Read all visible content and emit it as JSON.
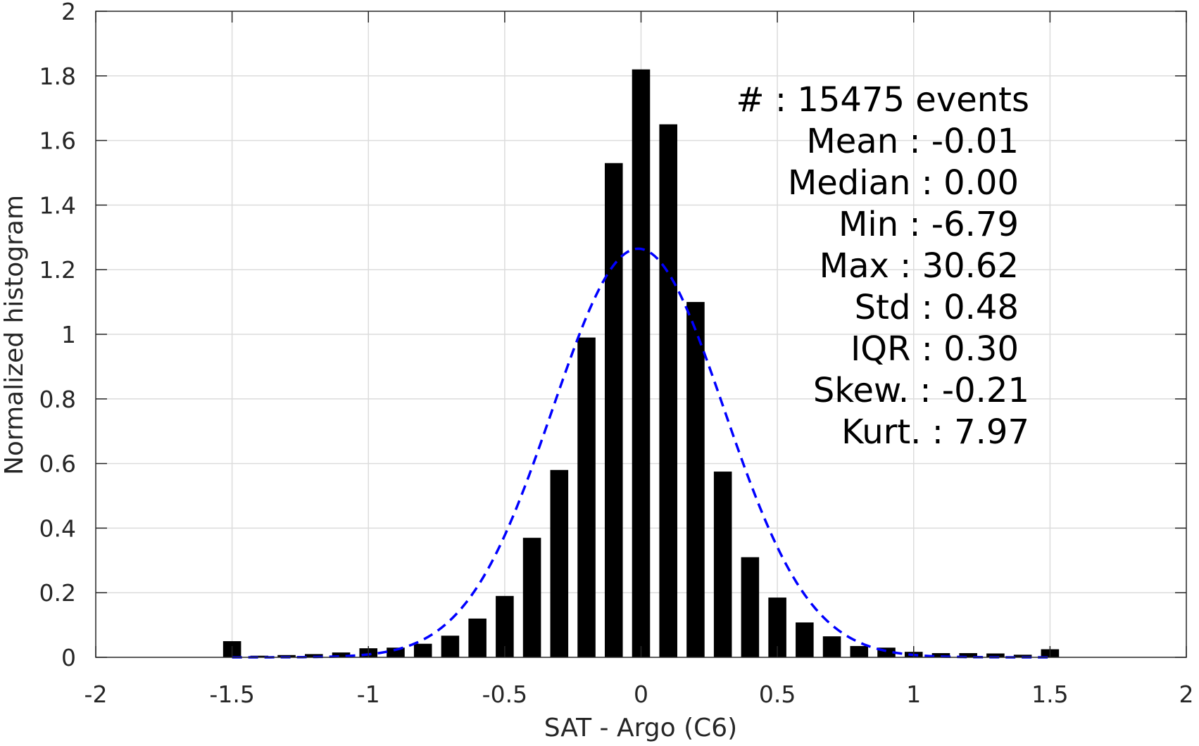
{
  "chart_data": {
    "type": "bar",
    "xlabel": "SAT - Argo (C6)",
    "ylabel": "Normalized histogram",
    "xlim": [
      -2,
      2
    ],
    "ylim": [
      0,
      2
    ],
    "grid": true,
    "x_ticks": [
      -2,
      -1.5,
      -1,
      -0.5,
      0,
      0.5,
      1,
      1.5,
      2
    ],
    "x_tick_labels": [
      "-2",
      "-1.5",
      "-1",
      "-0.5",
      "0",
      "0.5",
      "1",
      "1.5",
      "2"
    ],
    "y_ticks": [
      0,
      0.2,
      0.4,
      0.6,
      0.8,
      1,
      1.2,
      1.4,
      1.6,
      1.8,
      2
    ],
    "y_tick_labels": [
      "0",
      "0.2",
      "0.4",
      "0.6",
      "0.8",
      "1",
      "1.2",
      "1.4",
      "1.6",
      "1.8",
      "2"
    ],
    "bin_width": 0.1,
    "x": [
      -1.5,
      -1.4,
      -1.3,
      -1.2,
      -1.1,
      -1.0,
      -0.9,
      -0.8,
      -0.7,
      -0.6,
      -0.5,
      -0.4,
      -0.3,
      -0.2,
      -0.1,
      0.0,
      0.1,
      0.2,
      0.3,
      0.4,
      0.5,
      0.6,
      0.7,
      0.8,
      0.9,
      1.0,
      1.1,
      1.2,
      1.3,
      1.4,
      1.5
    ],
    "values": [
      0.05,
      0.005,
      0.007,
      0.01,
      0.015,
      0.028,
      0.03,
      0.042,
      0.067,
      0.12,
      0.19,
      0.37,
      0.58,
      0.99,
      1.53,
      1.82,
      1.65,
      1.1,
      0.575,
      0.31,
      0.185,
      0.108,
      0.065,
      0.035,
      0.03,
      0.017,
      0.013,
      0.013,
      0.012,
      0.008,
      0.025
    ],
    "gaussian_fit": {
      "mean": -0.01,
      "std": 0.315,
      "peak": 1.265,
      "x_range": [
        -1.5,
        1.5
      ]
    },
    "colors": {
      "bars": "#000000",
      "fit_line": "#0000ff",
      "grid": "#dcdcdc",
      "axis": "#262626"
    },
    "annotations": [
      "#  : 15475 events",
      "Mean : -0.01",
      "Median : 0.00",
      "Min : -6.79",
      "Max : 30.62",
      "Std : 0.48",
      "IQR : 0.30",
      "Skew. : -0.21",
      "Kurt. : 7.97"
    ]
  }
}
